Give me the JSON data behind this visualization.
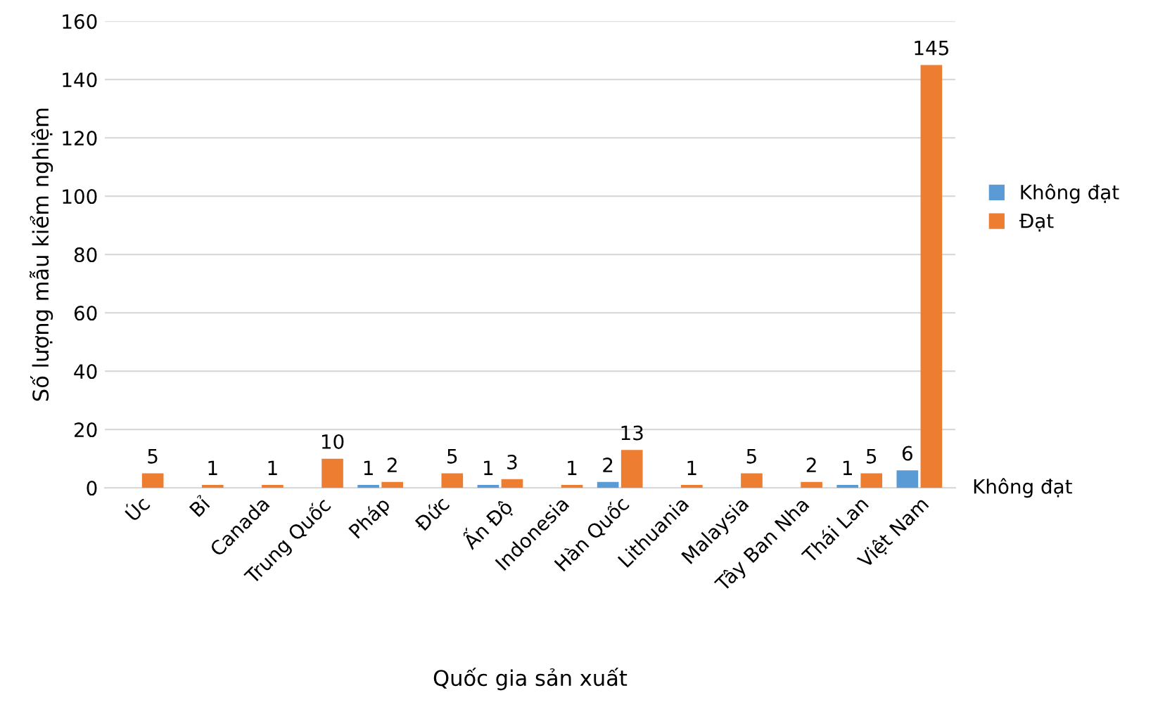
{
  "chart_data": {
    "type": "bar",
    "xlabel": "Quốc gia sản xuất",
    "ylabel": "Số lượng mẫu kiểm nghiệm",
    "categories": [
      "Úc",
      "Bỉ",
      "Canada",
      "Trung Quốc",
      "Pháp",
      "Đức",
      "Ấn Độ",
      "Indonesia",
      "Hàn Quốc",
      "Lithuania",
      "Malaysia",
      "Tây Ban Nha",
      "Thái Lan",
      "Việt Nam"
    ],
    "series": [
      {
        "name": "Không đạt",
        "color": "#5b9bd5",
        "values": [
          null,
          null,
          null,
          null,
          1,
          null,
          1,
          null,
          2,
          null,
          null,
          null,
          1,
          6
        ]
      },
      {
        "name": "Đạt",
        "color": "#ed7d31",
        "values": [
          5,
          1,
          1,
          10,
          2,
          5,
          3,
          1,
          13,
          1,
          5,
          2,
          5,
          145
        ]
      }
    ],
    "ylim": [
      0,
      160
    ],
    "yticks": [
      0,
      20,
      40,
      60,
      80,
      100,
      120,
      140,
      160
    ],
    "grid": "y",
    "legend": "right",
    "data_labels": true,
    "annotations": [
      "Không đạt"
    ]
  }
}
